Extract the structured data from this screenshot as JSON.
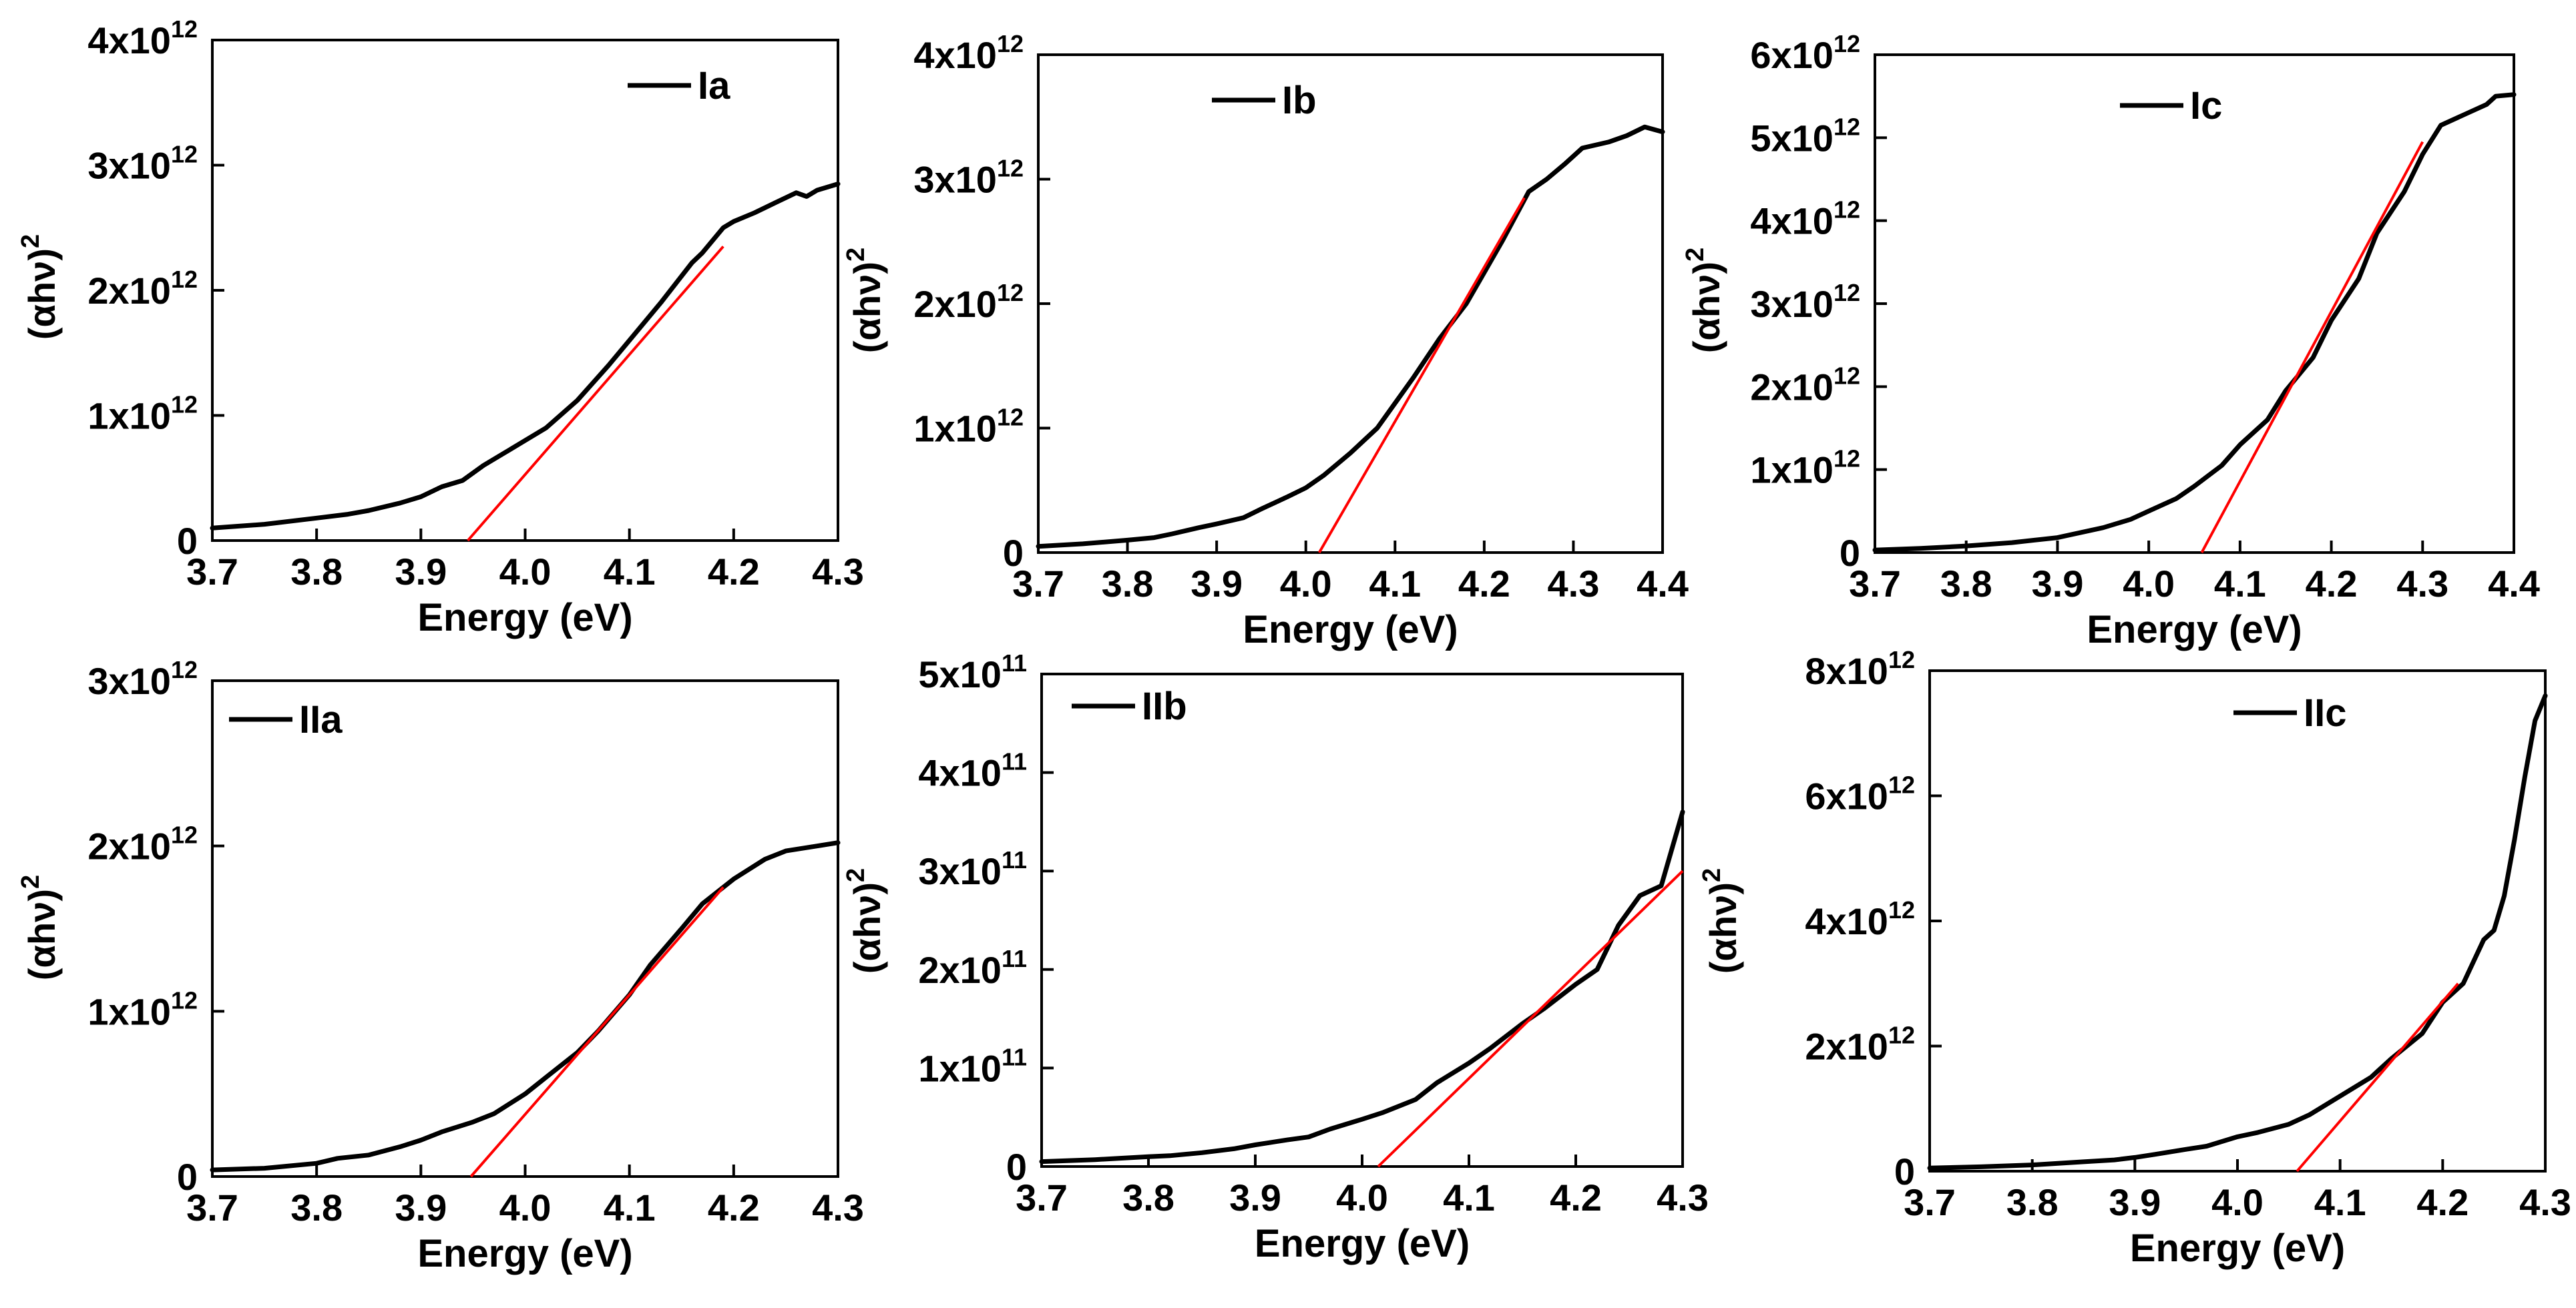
{
  "figure_title": "Tauc plots (αhν)² versus photon energy for samples Ia, Ib, Ic, IIa, IIb, IIc",
  "colors": {
    "curve": "#000000",
    "fit": "#ff0000",
    "axes": "#000000",
    "background": "#ffffff"
  },
  "chart_data": [
    {
      "type": "line",
      "legend": "Ia",
      "legend_position": "top-center",
      "xlabel": "Energy (eV)",
      "ylabel": {
        "base": "(αhν)",
        "sup": "2"
      },
      "xlim": [
        3.7,
        4.3
      ],
      "ylim": [
        0,
        4
      ],
      "y_exponent": "12",
      "xticks": [
        3.7,
        3.8,
        3.9,
        4.0,
        4.1,
        4.2,
        4.3
      ],
      "xtick_labels": [
        "3.7",
        "3.8",
        "3.9",
        "4.0",
        "4.1",
        "4.2",
        "4.3"
      ],
      "yticks": [
        0,
        1,
        2,
        3,
        4
      ],
      "ytick_labels": [
        "0",
        "1x10",
        "2x10",
        "3x10",
        "4x10"
      ],
      "series": [
        {
          "name": "Ia",
          "x": [
            3.7,
            3.75,
            3.8,
            3.83,
            3.85,
            3.88,
            3.9,
            3.92,
            3.94,
            3.96,
            3.98,
            4.0,
            4.02,
            4.05,
            4.08,
            4.1,
            4.13,
            4.16,
            4.17,
            4.19,
            4.2,
            4.22,
            4.24,
            4.26,
            4.27,
            4.28,
            4.3
          ],
          "y": [
            0.1,
            0.13,
            0.18,
            0.21,
            0.24,
            0.3,
            0.35,
            0.43,
            0.48,
            0.6,
            0.7,
            0.8,
            0.9,
            1.12,
            1.4,
            1.6,
            1.9,
            2.22,
            2.3,
            2.5,
            2.55,
            2.62,
            2.7,
            2.78,
            2.75,
            2.8,
            2.85
          ]
        }
      ],
      "fit_line": {
        "x": [
          3.945,
          4.19
        ],
        "y": [
          0.0,
          2.35
        ],
        "intercept_ev": 3.945
      }
    },
    {
      "type": "line",
      "legend": "Ib",
      "legend_position": "top-left",
      "xlabel": "Energy (eV)",
      "ylabel": {
        "base": "(αhν)",
        "sup": "2"
      },
      "xlim": [
        3.7,
        4.4
      ],
      "ylim": [
        0,
        4
      ],
      "y_exponent": "12",
      "xticks": [
        3.7,
        3.8,
        3.9,
        4.0,
        4.1,
        4.2,
        4.3,
        4.4
      ],
      "xtick_labels": [
        "3.7",
        "3.8",
        "3.9",
        "4.0",
        "4.1",
        "4.2",
        "4.3",
        "4.4"
      ],
      "yticks": [
        0,
        1,
        2,
        3,
        4
      ],
      "ytick_labels": [
        "0",
        "1x10",
        "2x10",
        "3x10",
        "4x10"
      ],
      "series": [
        {
          "name": "Ib",
          "x": [
            3.7,
            3.75,
            3.8,
            3.83,
            3.85,
            3.88,
            3.9,
            3.93,
            3.95,
            3.98,
            4.0,
            4.02,
            4.05,
            4.08,
            4.1,
            4.12,
            4.15,
            4.18,
            4.2,
            4.22,
            4.25,
            4.27,
            4.29,
            4.31,
            4.34,
            4.36,
            4.38,
            4.4
          ],
          "y": [
            0.05,
            0.07,
            0.1,
            0.12,
            0.15,
            0.2,
            0.23,
            0.28,
            0.35,
            0.45,
            0.52,
            0.62,
            0.8,
            1.0,
            1.2,
            1.4,
            1.72,
            2.0,
            2.25,
            2.5,
            2.9,
            3.0,
            3.12,
            3.25,
            3.3,
            3.35,
            3.42,
            3.38
          ]
        }
      ],
      "fit_line": {
        "x": [
          4.015,
          4.245
        ],
        "y": [
          0.0,
          2.85
        ],
        "intercept_ev": 4.015
      }
    },
    {
      "type": "line",
      "legend": "Ic",
      "legend_position": "top-center",
      "xlabel": "Energy (eV)",
      "ylabel": {
        "base": "(αhν)",
        "sup": "2"
      },
      "xlim": [
        3.7,
        4.4
      ],
      "ylim": [
        0,
        6
      ],
      "y_exponent": "12",
      "xticks": [
        3.7,
        3.8,
        3.9,
        4.0,
        4.1,
        4.2,
        4.3,
        4.4
      ],
      "xtick_labels": [
        "3.7",
        "3.8",
        "3.9",
        "4.0",
        "4.1",
        "4.2",
        "4.3",
        "4.4"
      ],
      "yticks": [
        0,
        1,
        2,
        3,
        4,
        5,
        6
      ],
      "ytick_labels": [
        "0",
        "1x10",
        "2x10",
        "3x10",
        "4x10",
        "5x10",
        "6x10"
      ],
      "series": [
        {
          "name": "Ic",
          "x": [
            3.7,
            3.75,
            3.8,
            3.85,
            3.9,
            3.95,
            3.98,
            4.0,
            4.03,
            4.05,
            4.08,
            4.1,
            4.13,
            4.15,
            4.18,
            4.2,
            4.23,
            4.25,
            4.28,
            4.3,
            4.32,
            4.35,
            4.37,
            4.38,
            4.4
          ],
          "y": [
            0.03,
            0.05,
            0.08,
            0.12,
            0.18,
            0.3,
            0.4,
            0.5,
            0.65,
            0.8,
            1.05,
            1.3,
            1.6,
            1.95,
            2.35,
            2.8,
            3.3,
            3.85,
            4.35,
            4.8,
            5.15,
            5.3,
            5.4,
            5.5,
            5.52
          ]
        }
      ],
      "fit_line": {
        "x": [
          4.058,
          4.3
        ],
        "y": [
          0.0,
          4.95
        ],
        "intercept_ev": 4.058
      }
    },
    {
      "type": "line",
      "legend": "IIa",
      "legend_position": "top-left",
      "xlabel": "Energy (eV)",
      "ylabel": {
        "base": "(αhν)",
        "sup": "2"
      },
      "xlim": [
        3.7,
        4.3
      ],
      "ylim": [
        0,
        3
      ],
      "y_exponent": "12",
      "xticks": [
        3.7,
        3.8,
        3.9,
        4.0,
        4.1,
        4.2,
        4.3
      ],
      "xtick_labels": [
        "3.7",
        "3.8",
        "3.9",
        "4.0",
        "4.1",
        "4.2",
        "4.3"
      ],
      "yticks": [
        0,
        1,
        2,
        3
      ],
      "ytick_labels": [
        "0",
        "1x10",
        "2x10",
        "3x10"
      ],
      "series": [
        {
          "name": "IIa",
          "x": [
            3.7,
            3.75,
            3.8,
            3.82,
            3.85,
            3.88,
            3.9,
            3.92,
            3.95,
            3.97,
            4.0,
            4.02,
            4.05,
            4.07,
            4.1,
            4.12,
            4.15,
            4.17,
            4.2,
            4.23,
            4.25,
            4.28,
            4.3
          ],
          "y": [
            0.04,
            0.05,
            0.08,
            0.11,
            0.13,
            0.18,
            0.22,
            0.27,
            0.33,
            0.38,
            0.5,
            0.6,
            0.75,
            0.88,
            1.1,
            1.28,
            1.5,
            1.65,
            1.8,
            1.92,
            1.97,
            2.0,
            2.02
          ]
        }
      ],
      "fit_line": {
        "x": [
          3.948,
          4.19
        ],
        "y": [
          0.0,
          1.75
        ],
        "intercept_ev": 3.948
      }
    },
    {
      "type": "line",
      "legend": "IIb",
      "legend_position": "top-left",
      "xlabel": "Energy (eV)",
      "ylabel": {
        "base": "(αhν)",
        "sup": "2"
      },
      "xlim": [
        3.7,
        4.3
      ],
      "ylim": [
        0,
        5
      ],
      "y_exponent": "11",
      "xticks": [
        3.7,
        3.8,
        3.9,
        4.0,
        4.1,
        4.2,
        4.3
      ],
      "xtick_labels": [
        "3.7",
        "3.8",
        "3.9",
        "4.0",
        "4.1",
        "4.2",
        "4.3"
      ],
      "yticks": [
        0,
        1,
        2,
        3,
        4,
        5
      ],
      "ytick_labels": [
        "0",
        "1x10",
        "2x10",
        "3x10",
        "4x10",
        "5x10"
      ],
      "series": [
        {
          "name": "IIb",
          "x": [
            3.7,
            3.75,
            3.8,
            3.82,
            3.85,
            3.88,
            3.9,
            3.93,
            3.95,
            3.97,
            4.0,
            4.02,
            4.05,
            4.07,
            4.1,
            4.12,
            4.15,
            4.17,
            4.2,
            4.22,
            4.24,
            4.26,
            4.28,
            4.3
          ],
          "y": [
            0.05,
            0.07,
            0.1,
            0.11,
            0.14,
            0.18,
            0.22,
            0.27,
            0.3,
            0.38,
            0.48,
            0.55,
            0.68,
            0.85,
            1.05,
            1.2,
            1.45,
            1.6,
            1.85,
            2.0,
            2.45,
            2.75,
            2.85,
            3.6
          ]
        }
      ],
      "fit_line": {
        "x": [
          4.015,
          4.3
        ],
        "y": [
          0.0,
          3.0
        ],
        "intercept_ev": 4.015
      }
    },
    {
      "type": "line",
      "legend": "IIc",
      "legend_position": "top-center",
      "xlabel": "Energy (eV)",
      "ylabel": {
        "base": "(αhν)",
        "sup": "2"
      },
      "xlim": [
        3.7,
        4.3
      ],
      "ylim": [
        0,
        8
      ],
      "y_exponent": "12",
      "xticks": [
        3.7,
        3.8,
        3.9,
        4.0,
        4.1,
        4.2,
        4.3
      ],
      "xtick_labels": [
        "3.7",
        "3.8",
        "3.9",
        "4.0",
        "4.1",
        "4.2",
        "4.3"
      ],
      "yticks": [
        0,
        2,
        4,
        6,
        8
      ],
      "ytick_labels": [
        "0",
        "2x10",
        "4x10",
        "6x10",
        "8x10"
      ],
      "series": [
        {
          "name": "IIc",
          "x": [
            3.7,
            3.75,
            3.8,
            3.82,
            3.85,
            3.88,
            3.9,
            3.92,
            3.95,
            3.97,
            4.0,
            4.02,
            4.05,
            4.07,
            4.1,
            4.13,
            4.15,
            4.18,
            4.2,
            4.22,
            4.24,
            4.25,
            4.26,
            4.27,
            4.28,
            4.29,
            4.3
          ],
          "y": [
            0.05,
            0.07,
            0.1,
            0.12,
            0.15,
            0.18,
            0.22,
            0.27,
            0.35,
            0.4,
            0.55,
            0.62,
            0.75,
            0.9,
            1.2,
            1.5,
            1.8,
            2.2,
            2.7,
            3.0,
            3.7,
            3.85,
            4.4,
            5.3,
            6.3,
            7.2,
            7.6
          ]
        }
      ],
      "fit_line": {
        "x": [
          4.058,
          4.215
        ],
        "y": [
          0.0,
          3.0
        ],
        "intercept_ev": 4.058
      }
    }
  ]
}
